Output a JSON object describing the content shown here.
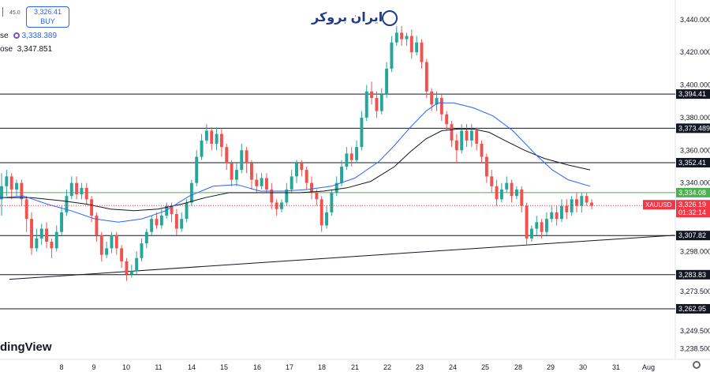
{
  "header": {
    "spread": "45.0",
    "buy_price": "3,326.41",
    "buy_label": "BUY",
    "row1_suffix": "se",
    "row1_value": "3,338.389",
    "row2_suffix": "ose",
    "row2_value": "3,347.851"
  },
  "brand": {
    "name": "ایران بروکر"
  },
  "watermark": "dingView",
  "colors": {
    "up": "#26a69a",
    "down": "#ef5350",
    "ma_fast": "#2962ff",
    "ma_slow": "#131722",
    "green_level": "#4caf50",
    "price_tag": "#f23645"
  },
  "chart_data": {
    "type": "candlestick",
    "symbol": "XAUUSD",
    "last_price": "3,326.19",
    "countdown": "01:32:14",
    "ylim": [
      3232,
      3452
    ],
    "y_ticks": [
      "3,440.000",
      "3,420.000",
      "3,400.000",
      "3,380.000",
      "3,360.000",
      "3,340.000",
      "3,298.000",
      "3,273.500",
      "3,249.500",
      "3,238.500"
    ],
    "y_ticks_values": [
      3440,
      3420,
      3400,
      3380,
      3360,
      3340,
      3298,
      3273.5,
      3249.5,
      3238.5
    ],
    "x_ticks": [
      {
        "label": "8",
        "pos": 78
      },
      {
        "label": "9",
        "pos": 119
      },
      {
        "label": "10",
        "pos": 160
      },
      {
        "label": "11",
        "pos": 201
      },
      {
        "label": "14",
        "pos": 243
      },
      {
        "label": "15",
        "pos": 284
      },
      {
        "label": "16",
        "pos": 326
      },
      {
        "label": "17",
        "pos": 367
      },
      {
        "label": "18",
        "pos": 408
      },
      {
        "label": "21",
        "pos": 450
      },
      {
        "label": "22",
        "pos": 491
      },
      {
        "label": "23",
        "pos": 532
      },
      {
        "label": "24",
        "pos": 574
      },
      {
        "label": "25",
        "pos": 615
      },
      {
        "label": "28",
        "pos": 657
      },
      {
        "label": "29",
        "pos": 698
      },
      {
        "label": "30",
        "pos": 739
      },
      {
        "label": "31",
        "pos": 781
      },
      {
        "label": "Aug",
        "pos": 822
      }
    ],
    "levels": [
      {
        "price": 3394.41,
        "label": "3,394.41"
      },
      {
        "price": 3373.489,
        "label": "3,373.489"
      },
      {
        "price": 3352.41,
        "label": "3,352.41"
      },
      {
        "price": 3334.08,
        "label": "3,334.08",
        "green": true
      },
      {
        "price": 3307.82,
        "label": "3,307.82"
      },
      {
        "price": 3283.83,
        "label": "3,283.83"
      },
      {
        "price": 3262.95,
        "label": "3,262.95"
      }
    ],
    "trendline": [
      [
        3281,
        3308
      ],
      [
        12,
        855
      ]
    ],
    "ma_fast": [
      [
        0,
        3331
      ],
      [
        30,
        3332
      ],
      [
        60,
        3327
      ],
      [
        90,
        3323
      ],
      [
        120,
        3318
      ],
      [
        150,
        3316
      ],
      [
        180,
        3318
      ],
      [
        210,
        3323
      ],
      [
        240,
        3332
      ],
      [
        270,
        3338
      ],
      [
        300,
        3339
      ],
      [
        330,
        3335
      ],
      [
        360,
        3335
      ],
      [
        390,
        3336
      ],
      [
        420,
        3338
      ],
      [
        450,
        3343
      ],
      [
        480,
        3353
      ],
      [
        500,
        3363
      ],
      [
        520,
        3374
      ],
      [
        540,
        3384
      ],
      [
        555,
        3389
      ],
      [
        575,
        3389
      ],
      [
        600,
        3386
      ],
      [
        625,
        3381
      ],
      [
        650,
        3372
      ],
      [
        680,
        3357
      ],
      [
        700,
        3348
      ],
      [
        720,
        3342
      ],
      [
        748,
        3338
      ]
    ],
    "ma_slow": [
      [
        0,
        3331
      ],
      [
        40,
        3331
      ],
      [
        80,
        3329
      ],
      [
        110,
        3327
      ],
      [
        140,
        3324
      ],
      [
        170,
        3323
      ],
      [
        200,
        3324
      ],
      [
        230,
        3327
      ],
      [
        260,
        3331
      ],
      [
        290,
        3334
      ],
      [
        320,
        3334
      ],
      [
        350,
        3334
      ],
      [
        380,
        3334
      ],
      [
        410,
        3335
      ],
      [
        440,
        3337
      ],
      [
        470,
        3341
      ],
      [
        500,
        3350
      ],
      [
        520,
        3359
      ],
      [
        540,
        3367
      ],
      [
        560,
        3372
      ],
      [
        580,
        3373
      ],
      [
        600,
        3373
      ],
      [
        620,
        3371
      ],
      [
        640,
        3366
      ],
      [
        665,
        3360
      ],
      [
        690,
        3355
      ],
      [
        720,
        3351
      ],
      [
        748,
        3348
      ]
    ],
    "candles": [
      [
        3330,
        3338,
        3346,
        3320
      ],
      [
        3338,
        3344,
        3348,
        3332
      ],
      [
        3344,
        3336,
        3346,
        3330
      ],
      [
        3336,
        3340,
        3342,
        3332
      ],
      [
        3340,
        3330,
        3342,
        3326
      ],
      [
        3330,
        3318,
        3332,
        3310
      ],
      [
        3318,
        3300,
        3322,
        3296
      ],
      [
        3300,
        3306,
        3312,
        3298
      ],
      [
        3306,
        3312,
        3315,
        3302
      ],
      [
        3312,
        3304,
        3316,
        3300
      ],
      [
        3304,
        3300,
        3306,
        3294
      ],
      [
        3300,
        3310,
        3314,
        3298
      ],
      [
        3310,
        3322,
        3326,
        3308
      ],
      [
        3322,
        3332,
        3336,
        3320
      ],
      [
        3332,
        3340,
        3344,
        3330
      ],
      [
        3340,
        3333,
        3344,
        3330
      ],
      [
        3333,
        3337,
        3340,
        3330
      ],
      [
        3337,
        3330,
        3340,
        3327
      ],
      [
        3330,
        3320,
        3332,
        3316
      ],
      [
        3320,
        3308,
        3322,
        3304
      ],
      [
        3308,
        3296,
        3310,
        3292
      ],
      [
        3296,
        3300,
        3304,
        3294
      ],
      [
        3300,
        3308,
        3310,
        3297
      ],
      [
        3308,
        3300,
        3310,
        3296
      ],
      [
        3300,
        3292,
        3302,
        3288
      ],
      [
        3292,
        3284,
        3294,
        3280
      ],
      [
        3284,
        3286,
        3290,
        3282
      ],
      [
        3286,
        3294,
        3298,
        3284
      ],
      [
        3294,
        3303,
        3306,
        3292
      ],
      [
        3303,
        3310,
        3312,
        3300
      ],
      [
        3310,
        3318,
        3320,
        3308
      ],
      [
        3318,
        3314,
        3322,
        3312
      ],
      [
        3314,
        3320,
        3324,
        3312
      ],
      [
        3320,
        3326,
        3328,
        3318
      ],
      [
        3326,
        3321,
        3328,
        3316
      ],
      [
        3321,
        3312,
        3324,
        3308
      ],
      [
        3312,
        3318,
        3322,
        3310
      ],
      [
        3318,
        3328,
        3330,
        3316
      ],
      [
        3328,
        3340,
        3342,
        3326
      ],
      [
        3340,
        3356,
        3360,
        3338
      ],
      [
        3356,
        3366,
        3370,
        3354
      ],
      [
        3366,
        3372,
        3376,
        3364
      ],
      [
        3372,
        3364,
        3374,
        3360
      ],
      [
        3364,
        3370,
        3374,
        3360
      ],
      [
        3370,
        3362,
        3373,
        3356
      ],
      [
        3362,
        3352,
        3364,
        3348
      ],
      [
        3352,
        3342,
        3354,
        3338
      ],
      [
        3342,
        3348,
        3352,
        3338
      ],
      [
        3348,
        3360,
        3364,
        3346
      ],
      [
        3360,
        3352,
        3362,
        3346
      ],
      [
        3352,
        3342,
        3354,
        3336
      ],
      [
        3342,
        3338,
        3346,
        3334
      ],
      [
        3338,
        3343,
        3346,
        3336
      ],
      [
        3343,
        3336,
        3346,
        3334
      ],
      [
        3336,
        3328,
        3340,
        3324
      ],
      [
        3328,
        3324,
        3330,
        3320
      ],
      [
        3324,
        3328,
        3330,
        3322
      ],
      [
        3328,
        3336,
        3340,
        3326
      ],
      [
        3336,
        3344,
        3348,
        3334
      ],
      [
        3344,
        3352,
        3354,
        3340
      ],
      [
        3352,
        3348,
        3354,
        3344
      ],
      [
        3348,
        3340,
        3350,
        3336
      ],
      [
        3340,
        3334,
        3344,
        3330
      ],
      [
        3334,
        3330,
        3336,
        3326
      ],
      [
        3330,
        3314,
        3332,
        3310
      ],
      [
        3314,
        3322,
        3326,
        3312
      ],
      [
        3322,
        3334,
        3336,
        3320
      ],
      [
        3334,
        3340,
        3344,
        3332
      ],
      [
        3340,
        3350,
        3354,
        3338
      ],
      [
        3350,
        3358,
        3362,
        3348
      ],
      [
        3358,
        3354,
        3362,
        3350
      ],
      [
        3354,
        3362,
        3366,
        3352
      ],
      [
        3362,
        3380,
        3384,
        3360
      ],
      [
        3380,
        3396,
        3400,
        3378
      ],
      [
        3396,
        3392,
        3402,
        3388
      ],
      [
        3392,
        3384,
        3396,
        3380
      ],
      [
        3384,
        3394,
        3398,
        3382
      ],
      [
        3394,
        3410,
        3414,
        3392
      ],
      [
        3410,
        3426,
        3430,
        3408
      ],
      [
        3426,
        3432,
        3436,
        3424
      ],
      [
        3432,
        3428,
        3436,
        3424
      ],
      [
        3428,
        3430,
        3432,
        3424
      ],
      [
        3430,
        3420,
        3434,
        3416
      ],
      [
        3420,
        3426,
        3430,
        3418
      ],
      [
        3426,
        3414,
        3428,
        3410
      ],
      [
        3414,
        3396,
        3416,
        3392
      ],
      [
        3396,
        3388,
        3398,
        3384
      ],
      [
        3388,
        3392,
        3396,
        3384
      ],
      [
        3392,
        3382,
        3394,
        3378
      ],
      [
        3382,
        3376,
        3384,
        3372
      ],
      [
        3376,
        3366,
        3378,
        3362
      ],
      [
        3366,
        3360,
        3370,
        3352
      ],
      [
        3360,
        3372,
        3376,
        3358
      ],
      [
        3372,
        3366,
        3376,
        3362
      ],
      [
        3366,
        3372,
        3376,
        3362
      ],
      [
        3372,
        3364,
        3374,
        3360
      ],
      [
        3364,
        3356,
        3366,
        3352
      ],
      [
        3356,
        3344,
        3358,
        3340
      ],
      [
        3344,
        3338,
        3348,
        3334
      ],
      [
        3338,
        3330,
        3342,
        3326
      ],
      [
        3330,
        3336,
        3340,
        3328
      ],
      [
        3336,
        3340,
        3344,
        3334
      ],
      [
        3340,
        3332,
        3342,
        3328
      ],
      [
        3332,
        3336,
        3338,
        3330
      ],
      [
        3336,
        3326,
        3338,
        3322
      ],
      [
        3326,
        3306,
        3328,
        3302
      ],
      [
        3306,
        3312,
        3314,
        3304
      ],
      [
        3312,
        3316,
        3320,
        3308
      ],
      [
        3316,
        3310,
        3318,
        3306
      ],
      [
        3310,
        3318,
        3322,
        3308
      ],
      [
        3318,
        3322,
        3326,
        3316
      ],
      [
        3322,
        3318,
        3326,
        3314
      ],
      [
        3318,
        3326,
        3330,
        3316
      ],
      [
        3326,
        3322,
        3330,
        3318
      ],
      [
        3322,
        3330,
        3332,
        3320
      ],
      [
        3330,
        3326,
        3334,
        3322
      ],
      [
        3326,
        3332,
        3334,
        3322
      ],
      [
        3332,
        3328,
        3334,
        3326
      ],
      [
        3328,
        3326,
        3330,
        3324
      ]
    ]
  }
}
